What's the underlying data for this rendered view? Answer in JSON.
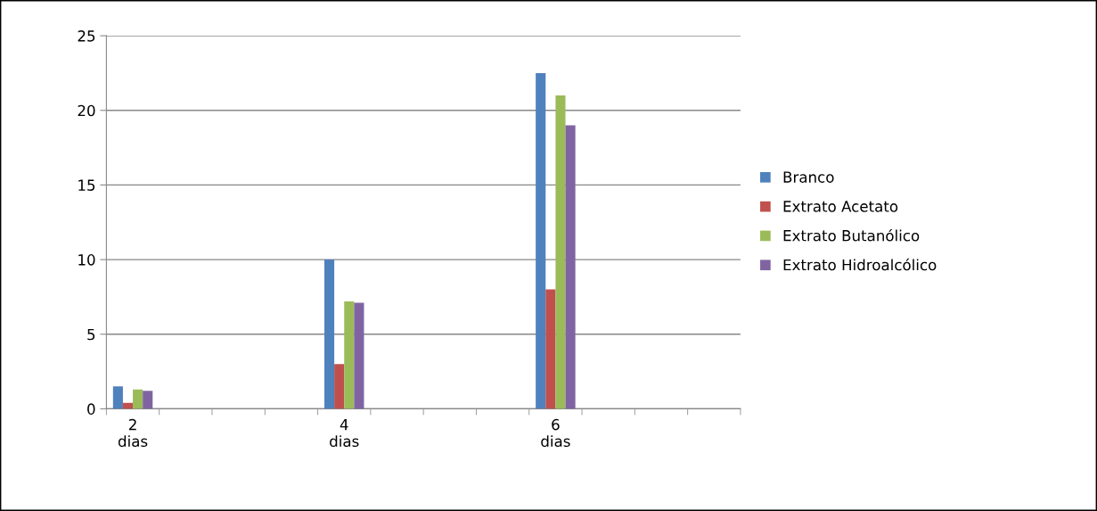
{
  "chart_data": {
    "type": "bar",
    "categories": [
      "2\ndias",
      null,
      null,
      null,
      "4\ndias",
      null,
      null,
      null,
      "6\ndias",
      null,
      null,
      null
    ],
    "series": [
      {
        "name": "Branco",
        "color": "#4f81bd",
        "values": [
          1.5,
          null,
          null,
          null,
          10,
          null,
          null,
          null,
          22.5,
          null,
          null,
          null
        ]
      },
      {
        "name": "Extrato Acetato",
        "color": "#c0504d",
        "values": [
          0.4,
          null,
          null,
          null,
          3,
          null,
          null,
          null,
          8,
          null,
          null,
          null
        ]
      },
      {
        "name": "Extrato Butanólico",
        "color": "#9bbb59",
        "values": [
          1.3,
          null,
          null,
          null,
          7.2,
          null,
          null,
          null,
          21,
          null,
          null,
          null
        ]
      },
      {
        "name": "Extrato Hidroalcólico",
        "color": "#8064a2",
        "values": [
          1.2,
          null,
          null,
          null,
          7.1,
          null,
          null,
          null,
          19,
          null,
          null,
          null
        ]
      }
    ],
    "ylim": [
      0,
      25
    ],
    "yticks": [
      0,
      5,
      10,
      15,
      20,
      25
    ],
    "grid": "y",
    "legend": "right"
  }
}
